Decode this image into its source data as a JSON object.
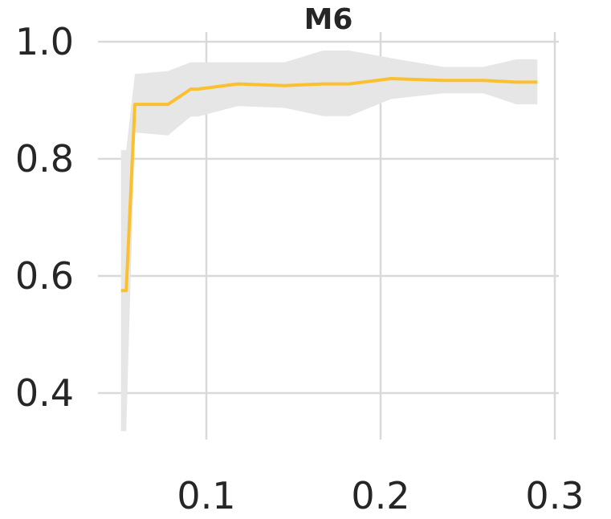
{
  "chart_data": {
    "type": "line",
    "title": "M6",
    "xlabel": "",
    "ylabel": "",
    "xlim": [
      0.0,
      0.3
    ],
    "ylim": [
      0.33,
      1.02
    ],
    "xticks": [
      0.1,
      0.2,
      0.3
    ],
    "xtick_labels": [
      "0.1",
      "0.2",
      "0.3"
    ],
    "yticks": [
      0.4,
      0.6,
      0.8,
      1.0
    ],
    "ytick_labels": [
      "0.4",
      "0.6",
      "0.8",
      "1.0"
    ],
    "grid": true,
    "series": [
      {
        "color": "#fbc02d",
        "x": [
          0.051,
          0.054,
          0.059,
          0.078,
          0.091,
          0.095,
          0.118,
          0.145,
          0.167,
          0.182,
          0.206,
          0.236,
          0.259,
          0.278,
          0.29
        ],
        "y": [
          0.575,
          0.575,
          0.893,
          0.893,
          0.919,
          0.919,
          0.928,
          0.925,
          0.928,
          0.928,
          0.937,
          0.934,
          0.934,
          0.931,
          0.931
        ],
        "band_upper": [
          0.815,
          0.815,
          0.945,
          0.95,
          0.965,
          0.965,
          0.965,
          0.965,
          0.985,
          0.985,
          0.972,
          0.957,
          0.957,
          0.97,
          0.97
        ],
        "band_lower": [
          0.335,
          0.335,
          0.845,
          0.84,
          0.872,
          0.872,
          0.89,
          0.887,
          0.873,
          0.873,
          0.902,
          0.912,
          0.912,
          0.893,
          0.893
        ],
        "band_color": "#e6e6e6"
      }
    ]
  }
}
